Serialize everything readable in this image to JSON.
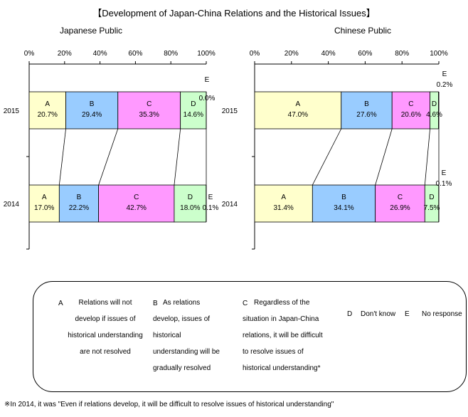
{
  "title": "【Development of Japan-China Relations and the Historical Issues】",
  "chart_data": [
    {
      "type": "bar",
      "orientation": "horizontal",
      "stacked": true,
      "title": "Japanese Public",
      "categories": [
        "2015",
        "2014"
      ],
      "xlim": [
        0,
        100
      ],
      "x_ticks": [
        "0%",
        "20%",
        "40%",
        "60%",
        "80%",
        "100%"
      ],
      "grid": false,
      "series": [
        {
          "name": "A",
          "color": "#ffffcc",
          "values": [
            20.7,
            17.0
          ],
          "labels": [
            "20.7%",
            "17.0%"
          ]
        },
        {
          "name": "B",
          "color": "#99ccff",
          "values": [
            29.4,
            22.2
          ],
          "labels": [
            "29.4%",
            "22.2%"
          ]
        },
        {
          "name": "C",
          "color": "#ff99ff",
          "values": [
            35.3,
            42.7
          ],
          "labels": [
            "35.3%",
            "42.7%"
          ]
        },
        {
          "name": "D",
          "color": "#ccffcc",
          "values": [
            14.6,
            18.0
          ],
          "labels": [
            "14.6%",
            "18.0%"
          ]
        },
        {
          "name": "E",
          "color": "#ffffff",
          "values": [
            0.0,
            0.1
          ],
          "labels": [
            "0.0%",
            "0.1%"
          ]
        }
      ]
    },
    {
      "type": "bar",
      "orientation": "horizontal",
      "stacked": true,
      "title": "Chinese Public",
      "categories": [
        "2015",
        "2014"
      ],
      "xlim": [
        0,
        100
      ],
      "x_ticks": [
        "0%",
        "20%",
        "40%",
        "60%",
        "80%",
        "100%"
      ],
      "grid": false,
      "series": [
        {
          "name": "A",
          "color": "#ffffcc",
          "values": [
            47.0,
            31.4
          ],
          "labels": [
            "47.0%",
            "31.4%"
          ]
        },
        {
          "name": "B",
          "color": "#99ccff",
          "values": [
            27.6,
            34.1
          ],
          "labels": [
            "27.6%",
            "34.1%"
          ]
        },
        {
          "name": "C",
          "color": "#ff99ff",
          "values": [
            20.6,
            26.9
          ],
          "labels": [
            "20.6%",
            "26.9%"
          ]
        },
        {
          "name": "D",
          "color": "#ccffcc",
          "values": [
            4.6,
            7.5
          ],
          "labels": [
            "4.6%",
            "7.5%"
          ]
        },
        {
          "name": "E",
          "color": "#ffffff",
          "values": [
            0.2,
            0.1
          ],
          "labels": [
            "0.2%",
            "0.1%"
          ]
        }
      ]
    }
  ],
  "legend": {
    "a_key": "A",
    "a_lines": [
      "Relations will not",
      "develop if issues of",
      "historical understanding",
      "are not resolved"
    ],
    "b_key": "B",
    "b_lines": [
      "As relations",
      "develop, issues of",
      "historical",
      "understanding will be",
      "gradually resolved"
    ],
    "c_key": "C",
    "c_lines": [
      "Regardless of the",
      "situation in Japan-China",
      "relations, it will be difficult",
      "to resolve issues of",
      "historical understanding*"
    ],
    "d_key": "D",
    "d_text": "Don't know",
    "e_key": "E",
    "e_text": "No response"
  },
  "footnote": "※In 2014, it was \"Even if relations develop, it will be difficult to resolve issues of historical understanding\""
}
